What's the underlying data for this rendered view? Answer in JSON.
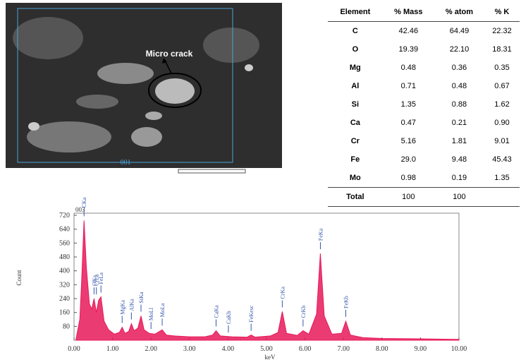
{
  "image": {
    "annotation": "Micro crack",
    "frame_label": "001"
  },
  "table": {
    "header": [
      "Element",
      "% Mass",
      "% atom",
      "% K"
    ],
    "rows": [
      [
        "C",
        "42.46",
        "64.49",
        "22.32"
      ],
      [
        "O",
        "19.39",
        "22.10",
        "18.31"
      ],
      [
        "Mg",
        "0.48",
        "0.36",
        "0.35"
      ],
      [
        "Al",
        "0.71",
        "0.48",
        "0.67"
      ],
      [
        "Si",
        "1.35",
        "0.88",
        "1.62"
      ],
      [
        "Ca",
        "0.47",
        "0.21",
        "0.90"
      ],
      [
        "Cr",
        "5.16",
        "1.81",
        "9.01"
      ],
      [
        "Fe",
        "29.0",
        "9.48",
        "45.43"
      ],
      [
        "Mo",
        "0.98",
        "0.19",
        "1.35"
      ],
      [
        "Total",
        "100",
        "100"
      ]
    ]
  },
  "chart_data": {
    "type": "area",
    "panel_label": "003",
    "x_label": "keV",
    "y_label": "Count",
    "color": "#e8195a",
    "x": [
      0.05,
      0.15,
      0.2,
      0.26,
      0.32,
      0.4,
      0.46,
      0.52,
      0.58,
      0.64,
      0.7,
      0.78,
      0.9,
      1.05,
      1.18,
      1.25,
      1.32,
      1.42,
      1.49,
      1.56,
      1.66,
      1.74,
      1.82,
      1.95,
      2.1,
      2.29,
      2.4,
      2.6,
      3.0,
      3.4,
      3.6,
      3.69,
      3.8,
      4.1,
      4.5,
      4.6,
      4.7,
      5.1,
      5.3,
      5.41,
      5.52,
      5.8,
      5.95,
      6.1,
      6.3,
      6.4,
      6.5,
      6.7,
      6.95,
      7.06,
      7.18,
      7.5,
      8.0,
      9.0,
      10.0
    ],
    "values": [
      5,
      120,
      350,
      690,
      420,
      210,
      180,
      240,
      160,
      230,
      250,
      110,
      60,
      35,
      45,
      75,
      40,
      50,
      95,
      55,
      70,
      140,
      60,
      40,
      35,
      60,
      30,
      25,
      20,
      20,
      30,
      55,
      25,
      20,
      18,
      30,
      18,
      25,
      45,
      165,
      40,
      28,
      55,
      35,
      150,
      500,
      140,
      35,
      40,
      110,
      30,
      15,
      10,
      8,
      5
    ],
    "xlim": [
      0,
      10
    ],
    "ylim": [
      0,
      720
    ],
    "xticks": [
      {
        "value": 0,
        "label": "0.00"
      },
      {
        "value": 1,
        "label": "1.00"
      },
      {
        "value": 2,
        "label": "2.00"
      },
      {
        "value": 3,
        "label": "3.00"
      },
      {
        "value": 4,
        "label": "4.00"
      },
      {
        "value": 5,
        "label": "5.00"
      },
      {
        "value": 6,
        "label": "6.00"
      },
      {
        "value": 7,
        "label": "7.00"
      },
      {
        "value": 8,
        "label": "8.00"
      },
      {
        "value": 9,
        "label": "9.00"
      },
      {
        "value": 10,
        "label": "10.00"
      }
    ],
    "yticks": [
      80,
      160,
      240,
      320,
      400,
      480,
      560,
      640,
      720
    ],
    "annotations": [
      {
        "label": "CKa",
        "x": 0.26
      },
      {
        "label": "OKa",
        "x": 0.52
      },
      {
        "label": "CrLa",
        "x": 0.58
      },
      {
        "label": "FeLa",
        "x": 0.7
      },
      {
        "label": "MgKa",
        "x": 1.25
      },
      {
        "label": "AlKa",
        "x": 1.49
      },
      {
        "label": "SiKa",
        "x": 1.74
      },
      {
        "label": "MoLl",
        "x": 2.0
      },
      {
        "label": "MoLa",
        "x": 2.29
      },
      {
        "label": "CaKa",
        "x": 3.69
      },
      {
        "label": "CaKb",
        "x": 4.01
      },
      {
        "label": "FeKesc",
        "x": 4.6
      },
      {
        "label": "CrKa",
        "x": 5.41
      },
      {
        "label": "CrKb",
        "x": 5.95
      },
      {
        "label": "FeKa",
        "x": 6.4
      },
      {
        "label": "FeKb",
        "x": 7.06
      }
    ]
  }
}
